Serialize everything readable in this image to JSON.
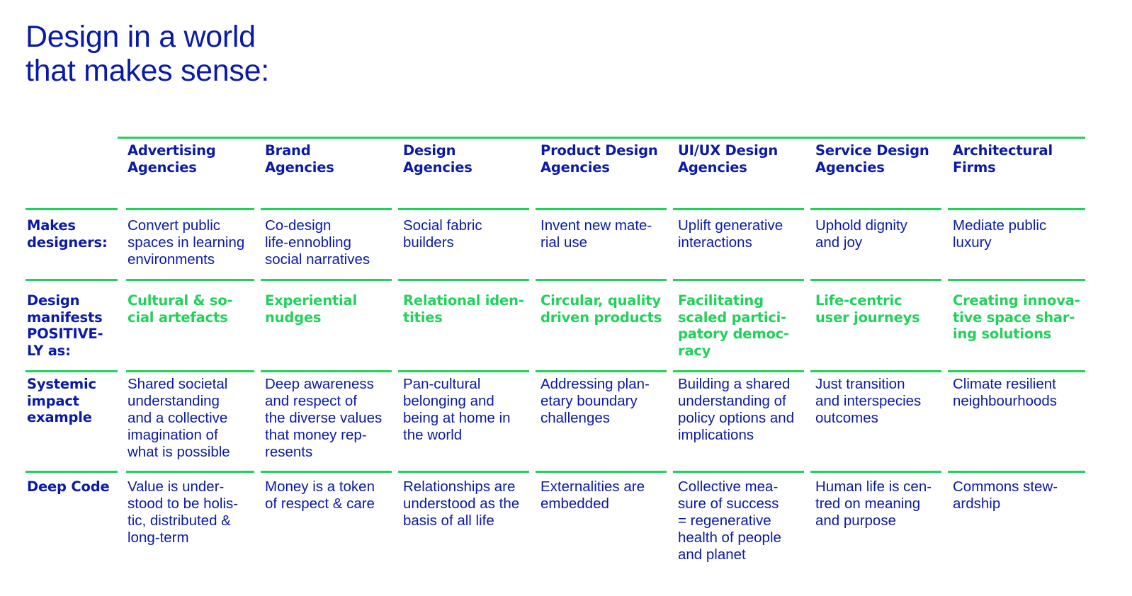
{
  "title": {
    "lines": [
      "Design in a world",
      "that makes sense:"
    ]
  },
  "columns": [
    {
      "lines": [
        "Advertising",
        "Agencies"
      ]
    },
    {
      "lines": [
        "Brand",
        "Agencies"
      ]
    },
    {
      "lines": [
        "Design",
        "Agencies"
      ]
    },
    {
      "lines": [
        "Product Design",
        "Agencies"
      ]
    },
    {
      "lines": [
        "UI/UX Design",
        "Agencies"
      ]
    },
    {
      "lines": [
        "Service Design",
        "Agencies"
      ]
    },
    {
      "lines": [
        "Architectural",
        "Firms"
      ]
    }
  ],
  "rows": [
    {
      "label": [
        "Makes",
        "designers:"
      ],
      "style": "plain",
      "cells": [
        [
          "Convert public",
          "spaces in learning",
          "environments"
        ],
        [
          "Co-design",
          "life-ennobling",
          "social narratives"
        ],
        [
          "Social fabric",
          "builders"
        ],
        [
          "Invent new mate-",
          "rial use"
        ],
        [
          "Uplift generative",
          "interactions"
        ],
        [
          "Uphold dignity",
          "and joy"
        ],
        [
          "Mediate public",
          "luxury"
        ]
      ]
    },
    {
      "label": [
        "Design",
        "manifests",
        "POSITIVE-",
        "LY as:"
      ],
      "style": "green",
      "cells": [
        [
          "Cultural & so-",
          "cial artefacts"
        ],
        [
          "Experiential",
          "nudges"
        ],
        [
          "Relational iden-",
          "tities"
        ],
        [
          "Circular, quality",
          "driven products"
        ],
        [
          "Facilitating",
          "scaled partici-",
          "patory democ-",
          "racy"
        ],
        [
          "Life-centric",
          "user journeys"
        ],
        [
          "Creating innova-",
          "tive space shar-",
          "ing solutions"
        ]
      ]
    },
    {
      "label": [
        "Systemic",
        "impact",
        "example"
      ],
      "style": "plain",
      "cells": [
        [
          "Shared societal",
          "understanding",
          "and a collective",
          "imagination of",
          "what is possible"
        ],
        [
          "Deep awareness",
          "and respect of",
          "the diverse values",
          "that money rep-",
          "resents"
        ],
        [
          "Pan-cultural",
          "belonging and",
          "being at home in",
          "the world"
        ],
        [
          "Addressing plan-",
          "etary boundary",
          "challenges"
        ],
        [
          "Building a shared",
          "understanding of",
          "policy options and",
          "implications"
        ],
        [
          "Just transition",
          "and interspecies",
          "outcomes"
        ],
        [
          "Climate resilient",
          "neighbourhoods"
        ]
      ]
    },
    {
      "label": [
        "Deep Code"
      ],
      "style": "plain",
      "cells": [
        [
          "Value is under-",
          "stood to be holis-",
          "tic, distributed &",
          "long-term"
        ],
        [
          "Money is a token",
          "of respect & care"
        ],
        [
          "Relationships are",
          "understood as the",
          "basis of all life"
        ],
        [
          "Externalities are",
          "embedded"
        ],
        [
          "Collective mea-",
          "sure of success",
          "= regenerative",
          "health of people",
          "and planet"
        ],
        [
          "Human life is cen-",
          "tred on meaning",
          "and purpose"
        ],
        [
          "Commons stew-",
          "ardship"
        ]
      ]
    }
  ],
  "colors": {
    "text": "#0a1aa8",
    "accent": "#22d15a",
    "background": "#ffffff"
  }
}
